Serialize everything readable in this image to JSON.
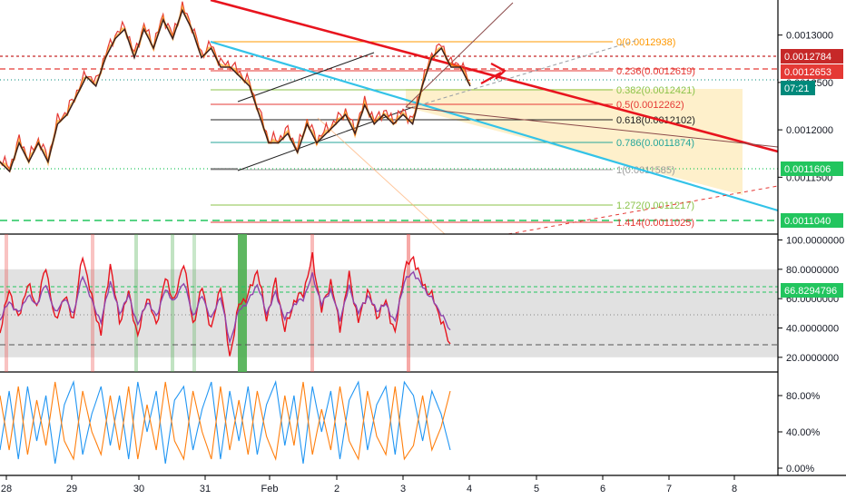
{
  "colors": {
    "price_red": "#e53935",
    "price_orange": "#ff9800",
    "ema_dark": "#3b1f1f",
    "trend_red": "#e8141e",
    "channel_cyan": "#33c3e8",
    "green_level": "#22c55e",
    "fib_zone": "#fde9b5",
    "rsi_band": "#d9d9d9",
    "rsi_purple": "#8e44ad",
    "stoch_blue": "#2196f3",
    "stoch_orange": "#ff7f0e"
  },
  "price_badges": [
    {
      "label": "0.0012784",
      "color": "#c62828"
    },
    {
      "label": "0.0012653",
      "color": "#e53935"
    },
    {
      "label": "07:21",
      "color": "#00897b"
    },
    {
      "label": "0.0011606",
      "color": "#22c55e"
    },
    {
      "label": "0.0011040",
      "color": "#22c55e"
    }
  ],
  "rsi_badge": {
    "label": "66.8294796",
    "color": "#22c55e"
  },
  "chart_data": [
    {
      "type": "line",
      "pane": "price",
      "x_ticks": [
        "28",
        "29",
        "30",
        "31",
        "Feb",
        "2",
        "3",
        "4",
        "5",
        "6",
        "7",
        "8"
      ],
      "y_ticks": [
        "0.0013000",
        "0.0012500",
        "0.0012000",
        "0.0011500"
      ],
      "y_tick_values": [
        0.0013,
        0.00125,
        0.0012,
        0.00115
      ],
      "ylim": [
        0.00109,
        0.001337
      ],
      "xlim": [
        27.9,
        8.55
      ],
      "series": [
        {
          "values": [
            0.00117,
            0.00116,
            0.00119,
            0.00117,
            0.00119,
            0.00117,
            0.00121,
            0.00122,
            0.00124,
            0.00126,
            0.00125,
            0.00128,
            0.0013,
            0.00131,
            0.00128,
            0.00131,
            0.00129,
            0.00132,
            0.0013,
            0.00133,
            0.00131,
            0.00128,
            0.00129,
            0.00127,
            0.00127,
            0.00126,
            0.00125,
            0.00122,
            0.00119,
            0.00119,
            0.0012,
            0.00118,
            0.00121,
            0.00119,
            0.0012,
            0.00121,
            0.00122,
            0.0012,
            0.00123,
            0.00121,
            0.00122,
            0.00121,
            0.00122,
            0.00121,
            0.00125,
            0.00128,
            0.00129,
            0.00127,
            0.00127,
            0.00125
          ]
        }
      ],
      "fib_levels": [
        {
          "ratio": "0",
          "price": "0.0012938",
          "label": "0(0.0012938)"
        },
        {
          "ratio": "0.236",
          "price": "0.0012619",
          "label": "0.236(0.0012619)"
        },
        {
          "ratio": "0.382",
          "price": "0.0012421",
          "label": "0.382(0.0012421)"
        },
        {
          "ratio": "0.5",
          "price": "0.0012262",
          "label": "0.5(0.0012262)"
        },
        {
          "ratio": "0.618",
          "price": "0.0012102",
          "label": "0.618(0.0012102)"
        },
        {
          "ratio": "0.786",
          "price": "0.0011874",
          "label": "0.786(0.0011874)"
        },
        {
          "ratio": "1",
          "price": "0.0011585",
          "label": "1(0.0011585)"
        },
        {
          "ratio": "1.272",
          "price": "0.0011217",
          "label": "1.272(0.0011217)"
        },
        {
          "ratio": "1.414",
          "price": "0.0011025",
          "label": "1.414(0.0011025)"
        }
      ],
      "grid": false
    },
    {
      "type": "line",
      "pane": "rsi",
      "y_ticks": [
        "100.0000000",
        "80.0000000",
        "60.0000000",
        "40.0000000",
        "20.0000000"
      ],
      "y_tick_values": [
        100,
        80,
        60,
        40,
        20
      ],
      "ylim": [
        10,
        104
      ],
      "band": [
        20,
        80
      ],
      "series": [
        {
          "values": [
            38,
            66,
            46,
            70,
            55,
            82,
            44,
            62,
            46,
            90,
            60,
            36,
            84,
            44,
            64,
            34,
            62,
            42,
            74,
            58,
            86,
            42,
            68,
            38,
            70,
            20,
            56,
            62,
            80,
            46,
            72,
            38,
            58,
            64,
            88,
            52,
            72,
            40,
            76,
            44,
            66,
            48,
            58,
            36,
            80,
            88,
            70,
            62,
            46,
            28
          ]
        },
        {
          "values": [
            46,
            58,
            50,
            62,
            56,
            70,
            50,
            60,
            50,
            76,
            58,
            44,
            72,
            50,
            62,
            42,
            58,
            48,
            66,
            58,
            72,
            48,
            62,
            46,
            62,
            30,
            52,
            58,
            70,
            50,
            64,
            46,
            56,
            60,
            76,
            56,
            66,
            46,
            68,
            50,
            62,
            52,
            56,
            44,
            72,
            78,
            68,
            60,
            50,
            38
          ]
        }
      ]
    },
    {
      "type": "line",
      "pane": "stoch",
      "y_ticks": [
        "80.00%",
        "40.00%",
        "0.00%"
      ],
      "y_tick_values": [
        80,
        40,
        0
      ],
      "ylim": [
        -8,
        106
      ],
      "series": [
        {
          "values": [
            20,
            85,
            10,
            90,
            30,
            80,
            5,
            70,
            95,
            15,
            60,
            90,
            25,
            80,
            10,
            95,
            40,
            85,
            5,
            75,
            90,
            20,
            65,
            95,
            10,
            85,
            30,
            90,
            15,
            70,
            95,
            25,
            80,
            5,
            90,
            40,
            85,
            10,
            75,
            95,
            20,
            70,
            90,
            15,
            95,
            80,
            30,
            85,
            60,
            20
          ]
        },
        {
          "values": [
            80,
            20,
            90,
            15,
            75,
            25,
            95,
            30,
            10,
            85,
            40,
            15,
            80,
            20,
            90,
            10,
            70,
            20,
            95,
            30,
            10,
            85,
            40,
            10,
            90,
            20,
            75,
            15,
            85,
            35,
            10,
            80,
            25,
            95,
            15,
            65,
            20,
            90,
            30,
            10,
            85,
            35,
            15,
            90,
            10,
            25,
            80,
            20,
            45,
            85
          ]
        }
      ]
    }
  ]
}
